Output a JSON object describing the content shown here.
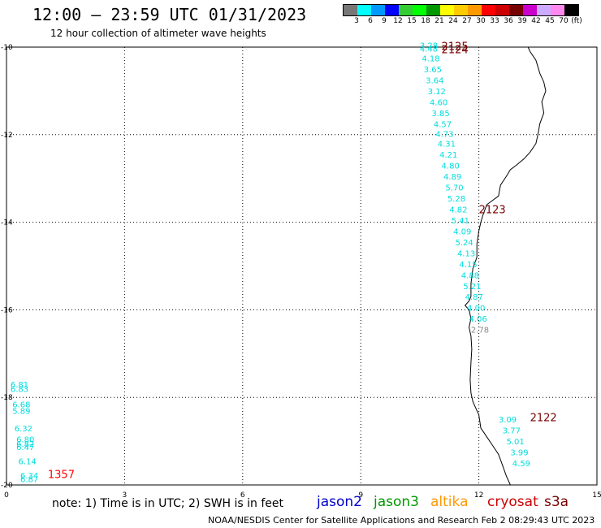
{
  "header": {
    "title": "12:00 – 23:59 UTC 01/31/2023",
    "subtitle": "12 hour collection of altimeter wave heights"
  },
  "color_scale": {
    "colors": [
      "#777777",
      "#00ffff",
      "#0099ff",
      "#0000ff",
      "#33cc33",
      "#00ff00",
      "#009900",
      "#ffff00",
      "#ffcc00",
      "#ff9900",
      "#ff0000",
      "#cc0000",
      "#770000",
      "#cc00cc",
      "#ccaaff",
      "#ff88ee",
      "#000000"
    ],
    "labels": [
      "3",
      "6",
      "9",
      "12",
      "15",
      "18",
      "21",
      "24",
      "27",
      "30",
      "33",
      "36",
      "39",
      "42",
      "45",
      "70"
    ],
    "unit": "(ft)"
  },
  "axes": {
    "x_ticks": [
      "0",
      "3",
      "6",
      "9",
      "12",
      "15"
    ],
    "y_ticks": [
      "-10",
      "-12",
      "-14",
      "-16",
      "-18",
      "-20"
    ]
  },
  "satellites": [
    {
      "name": "jason2",
      "color": "#0000cc"
    },
    {
      "name": "jason3",
      "color": "#009900"
    },
    {
      "name": "altika",
      "color": "#ff9900"
    },
    {
      "name": "cryosat",
      "color": "#cc0000"
    },
    {
      "name": "s3a",
      "color": "#770000"
    }
  ],
  "footer": {
    "note": "note:  1) Time is in UTC;  2) SWH is in feet",
    "credit": "NOAA/NESDIS Center for Satellite Applications and Research   Feb  2 08:29:43 UTC 2023"
  },
  "map_data": {
    "extent": {
      "lon": [
        0,
        15
      ],
      "lat": [
        -20,
        -10
      ]
    },
    "track_labels": [
      {
        "text": "2125",
        "lon": 11.05,
        "lat": -9.97,
        "color": "#770000"
      },
      {
        "text": "2124",
        "lon": 11.05,
        "lat": -10.05,
        "color": "#770000"
      },
      {
        "text": "2123",
        "lon": 12.0,
        "lat": -13.7,
        "color": "#770000"
      },
      {
        "text": "2122",
        "lon": 13.3,
        "lat": -18.45,
        "color": "#770000"
      },
      {
        "text": "1357",
        "lon": 1.05,
        "lat": -19.75,
        "color": "#ff0000"
      }
    ],
    "wave_heights": [
      {
        "value": "3.28",
        "lon": 10.5,
        "lat": -9.95,
        "color": "#00dddd"
      },
      {
        "value": "4.48",
        "lon": 10.5,
        "lat": -10.03,
        "color": "#00dddd"
      },
      {
        "value": "4.18",
        "lon": 10.55,
        "lat": -10.25,
        "color": "#00dddd"
      },
      {
        "value": "3.65",
        "lon": 10.6,
        "lat": -10.5,
        "color": "#00dddd"
      },
      {
        "value": "3.64",
        "lon": 10.65,
        "lat": -10.75,
        "color": "#00dddd"
      },
      {
        "value": "3.12",
        "lon": 10.7,
        "lat": -11.0,
        "color": "#00dddd"
      },
      {
        "value": "4.60",
        "lon": 10.75,
        "lat": -11.25,
        "color": "#00dddd"
      },
      {
        "value": "3.85",
        "lon": 10.8,
        "lat": -11.5,
        "color": "#00dddd"
      },
      {
        "value": "4.57",
        "lon": 10.85,
        "lat": -11.75,
        "color": "#00dddd"
      },
      {
        "value": "4.73",
        "lon": 10.9,
        "lat": -11.98,
        "color": "#00dddd"
      },
      {
        "value": "4.31",
        "lon": 10.95,
        "lat": -12.2,
        "color": "#00dddd"
      },
      {
        "value": "4.21",
        "lon": 11.0,
        "lat": -12.45,
        "color": "#00dddd"
      },
      {
        "value": "4.80",
        "lon": 11.05,
        "lat": -12.7,
        "color": "#00dddd"
      },
      {
        "value": "4.89",
        "lon": 11.1,
        "lat": -12.95,
        "color": "#00dddd"
      },
      {
        "value": "5.70",
        "lon": 11.15,
        "lat": -13.2,
        "color": "#00dddd"
      },
      {
        "value": "5.28",
        "lon": 11.2,
        "lat": -13.45,
        "color": "#00dddd"
      },
      {
        "value": "4.82",
        "lon": 11.25,
        "lat": -13.7,
        "color": "#00dddd"
      },
      {
        "value": "5.41",
        "lon": 11.3,
        "lat": -13.95,
        "color": "#00dddd"
      },
      {
        "value": "4.09",
        "lon": 11.35,
        "lat": -14.2,
        "color": "#00dddd"
      },
      {
        "value": "5.24",
        "lon": 11.4,
        "lat": -14.45,
        "color": "#00dddd"
      },
      {
        "value": "4.13",
        "lon": 11.45,
        "lat": -14.7,
        "color": "#00dddd"
      },
      {
        "value": "4.15",
        "lon": 11.5,
        "lat": -14.95,
        "color": "#00dddd"
      },
      {
        "value": "4.88",
        "lon": 11.55,
        "lat": -15.2,
        "color": "#00dddd"
      },
      {
        "value": "5.21",
        "lon": 11.6,
        "lat": -15.45,
        "color": "#00dddd"
      },
      {
        "value": "4.87",
        "lon": 11.65,
        "lat": -15.7,
        "color": "#00dddd"
      },
      {
        "value": "4.00",
        "lon": 11.7,
        "lat": -15.95,
        "color": "#00dddd"
      },
      {
        "value": "4.06",
        "lon": 11.75,
        "lat": -16.2,
        "color": "#00dddd"
      },
      {
        "value": "2.78",
        "lon": 11.8,
        "lat": -16.45,
        "color": "#888888"
      },
      {
        "value": "3.09",
        "lon": 12.5,
        "lat": -18.5,
        "color": "#00dddd"
      },
      {
        "value": "3.77",
        "lon": 12.6,
        "lat": -18.75,
        "color": "#00dddd"
      },
      {
        "value": "5.01",
        "lon": 12.7,
        "lat": -19.0,
        "color": "#00dddd"
      },
      {
        "value": "3.99",
        "lon": 12.8,
        "lat": -19.25,
        "color": "#00dddd"
      },
      {
        "value": "4.59",
        "lon": 12.85,
        "lat": -19.5,
        "color": "#00dddd"
      },
      {
        "value": "6.81",
        "lon": 0.1,
        "lat": -17.7,
        "color": "#00dddd"
      },
      {
        "value": "6.83",
        "lon": 0.1,
        "lat": -17.8,
        "color": "#00dddd"
      },
      {
        "value": "6.68",
        "lon": 0.15,
        "lat": -18.15,
        "color": "#00dddd"
      },
      {
        "value": "5.89",
        "lon": 0.15,
        "lat": -18.3,
        "color": "#00dddd"
      },
      {
        "value": "6.32",
        "lon": 0.2,
        "lat": -18.7,
        "color": "#00dddd"
      },
      {
        "value": "6.80",
        "lon": 0.25,
        "lat": -18.95,
        "color": "#00dddd"
      },
      {
        "value": "6.82",
        "lon": 0.25,
        "lat": -19.05,
        "color": "#00dddd"
      },
      {
        "value": "6.47",
        "lon": 0.25,
        "lat": -19.13,
        "color": "#00dddd"
      },
      {
        "value": "6.14",
        "lon": 0.3,
        "lat": -19.45,
        "color": "#00dddd"
      },
      {
        "value": "6.34",
        "lon": 0.35,
        "lat": -19.78,
        "color": "#00dddd"
      },
      {
        "value": "6.87",
        "lon": 0.35,
        "lat": -19.86,
        "color": "#00dddd"
      }
    ],
    "coastline": [
      [
        13.25,
        -10.0
      ],
      [
        13.3,
        -10.1
      ],
      [
        13.45,
        -10.3
      ],
      [
        13.55,
        -10.6
      ],
      [
        13.65,
        -10.8
      ],
      [
        13.7,
        -11.0
      ],
      [
        13.6,
        -11.25
      ],
      [
        13.65,
        -11.5
      ],
      [
        13.55,
        -11.75
      ],
      [
        13.5,
        -12.0
      ],
      [
        13.45,
        -12.2
      ],
      [
        13.3,
        -12.4
      ],
      [
        13.15,
        -12.55
      ],
      [
        12.95,
        -12.7
      ],
      [
        12.8,
        -12.8
      ],
      [
        12.7,
        -12.95
      ],
      [
        12.55,
        -13.15
      ],
      [
        12.5,
        -13.4
      ],
      [
        12.35,
        -13.5
      ],
      [
        12.2,
        -13.6
      ],
      [
        12.1,
        -13.85
      ],
      [
        12.05,
        -14.0
      ],
      [
        12.0,
        -14.2
      ],
      [
        11.95,
        -14.5
      ],
      [
        11.95,
        -14.8
      ],
      [
        11.85,
        -15.05
      ],
      [
        11.8,
        -15.4
      ],
      [
        11.8,
        -15.7
      ],
      [
        11.75,
        -15.8
      ],
      [
        11.65,
        -15.9
      ],
      [
        11.75,
        -16.0
      ],
      [
        11.8,
        -16.2
      ],
      [
        11.75,
        -16.4
      ],
      [
        11.8,
        -16.6
      ],
      [
        11.82,
        -16.9
      ],
      [
        11.8,
        -17.2
      ],
      [
        11.78,
        -17.6
      ],
      [
        11.8,
        -17.9
      ],
      [
        11.85,
        -18.1
      ],
      [
        12.0,
        -18.4
      ],
      [
        12.05,
        -18.7
      ],
      [
        12.2,
        -18.9
      ],
      [
        12.35,
        -19.1
      ],
      [
        12.5,
        -19.3
      ],
      [
        12.6,
        -19.55
      ],
      [
        12.7,
        -19.8
      ],
      [
        12.8,
        -20.0
      ]
    ]
  }
}
